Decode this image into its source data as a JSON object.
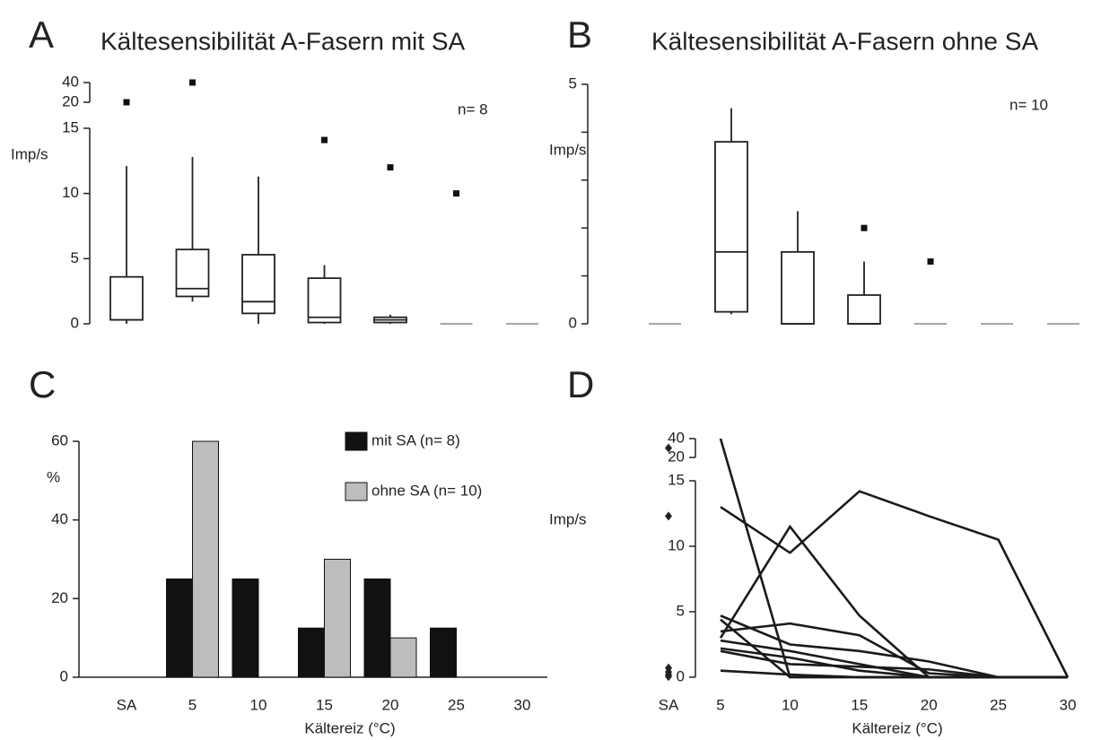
{
  "chart_data": [
    {
      "type": "box",
      "label": "A",
      "title": "Kältesensibilität A-Fasern mit SA",
      "ylabel": "Imp/s",
      "annotation": "n= 8",
      "ylim": [
        0,
        40
      ],
      "ybreak": 15,
      "yticks": [
        0,
        5,
        10,
        15,
        20,
        40
      ],
      "boxes": [
        {
          "min": 0,
          "q1": 0.3,
          "median": 0.3,
          "q3": 3.6,
          "max": 12.1,
          "outliers": [
            20
          ]
        },
        {
          "min": 1.7,
          "q1": 2.1,
          "median": 2.7,
          "q3": 5.7,
          "max": 12.8,
          "outliers": [
            40
          ]
        },
        {
          "min": 0,
          "q1": 0.8,
          "median": 1.7,
          "q3": 5.3,
          "max": 11.3,
          "outliers": []
        },
        {
          "min": 0,
          "q1": 0.1,
          "median": 0.5,
          "q3": 3.5,
          "max": 4.5,
          "outliers": [
            14.1
          ]
        },
        {
          "min": 0,
          "q1": 0.1,
          "median": 0.3,
          "q3": 0.5,
          "max": 0.7,
          "outliers": [
            12
          ]
        },
        {
          "min": 0,
          "q1": 0,
          "median": 0,
          "q3": 0,
          "max": 0,
          "outliers": [
            10
          ]
        },
        {
          "min": 0,
          "q1": 0,
          "median": 0,
          "q3": 0,
          "max": 0,
          "outliers": []
        }
      ]
    },
    {
      "type": "box",
      "label": "B",
      "title": "Kältesensibilität A-Fasern ohne SA",
      "ylabel": "Imp/s",
      "annotation": "n= 10",
      "ylim": [
        0,
        5
      ],
      "yticks": [
        0,
        5
      ],
      "yminor_ticks": [
        1,
        2,
        3,
        4
      ],
      "boxes": [
        {
          "min": 0,
          "q1": 0,
          "median": 0,
          "q3": 0,
          "max": 0,
          "outliers": []
        },
        {
          "min": 0.2,
          "q1": 0.25,
          "median": 1.5,
          "q3": 3.8,
          "max": 4.5,
          "outliers": []
        },
        {
          "min": 0,
          "q1": 0,
          "median": 0,
          "q3": 1.5,
          "max": 2.35,
          "outliers": []
        },
        {
          "min": 0,
          "q1": 0,
          "median": 0,
          "q3": 0.6,
          "max": 1.3,
          "outliers": [
            2
          ]
        },
        {
          "min": 0,
          "q1": 0,
          "median": 0,
          "q3": 0,
          "max": 0,
          "outliers": [
            1.3
          ]
        },
        {
          "min": 0,
          "q1": 0,
          "median": 0,
          "q3": 0,
          "max": 0,
          "outliers": []
        },
        {
          "min": 0,
          "q1": 0,
          "median": 0,
          "q3": 0,
          "max": 0,
          "outliers": []
        }
      ]
    },
    {
      "type": "bar",
      "label": "C",
      "ylabel": "%",
      "xlabel": "Kältereiz (°C)",
      "categories": [
        "SA",
        "5",
        "10",
        "15",
        "20",
        "25",
        "30"
      ],
      "ylim": [
        0,
        60
      ],
      "yticks": [
        0,
        20,
        40,
        60
      ],
      "series": [
        {
          "name": "mit SA (n= 8)",
          "color": "#111111",
          "values": [
            0,
            25,
            25,
            12.5,
            25,
            12.5,
            0
          ]
        },
        {
          "name": "ohne SA (n= 10)",
          "color": "#bdbdbd",
          "values": [
            0,
            60,
            0,
            30,
            10,
            0,
            0
          ]
        }
      ]
    },
    {
      "type": "line",
      "label": "D",
      "ylabel": "Imp/s",
      "xlabel": "Kältereiz (°C)",
      "categories": [
        "SA",
        "5",
        "10",
        "15",
        "20",
        "25",
        "30"
      ],
      "ylim": [
        0,
        40
      ],
      "ybreak": 15,
      "yticks": [
        0,
        5,
        10,
        15,
        20,
        40
      ],
      "sa_values": [
        30,
        12.3,
        0.7,
        0.4,
        0.2,
        0.05
      ],
      "series": [
        {
          "values": [
            null,
            40,
            0,
            0,
            0,
            0,
            0
          ]
        },
        {
          "values": [
            null,
            13,
            9.5,
            14.2,
            12.3,
            10.5,
            0
          ]
        },
        {
          "values": [
            null,
            3,
            11.5,
            4.7,
            0,
            0,
            0
          ]
        },
        {
          "values": [
            null,
            4.7,
            2.5,
            2,
            1.2,
            0,
            0
          ]
        },
        {
          "values": [
            null,
            3.5,
            4.1,
            3.2,
            0.3,
            0,
            0
          ]
        },
        {
          "values": [
            null,
            2.8,
            2,
            1,
            0,
            0,
            0
          ]
        },
        {
          "values": [
            null,
            2.2,
            1.5,
            0.5,
            0,
            0,
            0
          ]
        },
        {
          "values": [
            null,
            2,
            1,
            0.8,
            0.6,
            0,
            0
          ]
        },
        {
          "values": [
            null,
            0.5,
            0.2,
            0,
            0,
            0,
            0
          ]
        },
        {
          "values": [
            null,
            4.4,
            0,
            0,
            0,
            0,
            0
          ]
        }
      ]
    }
  ]
}
